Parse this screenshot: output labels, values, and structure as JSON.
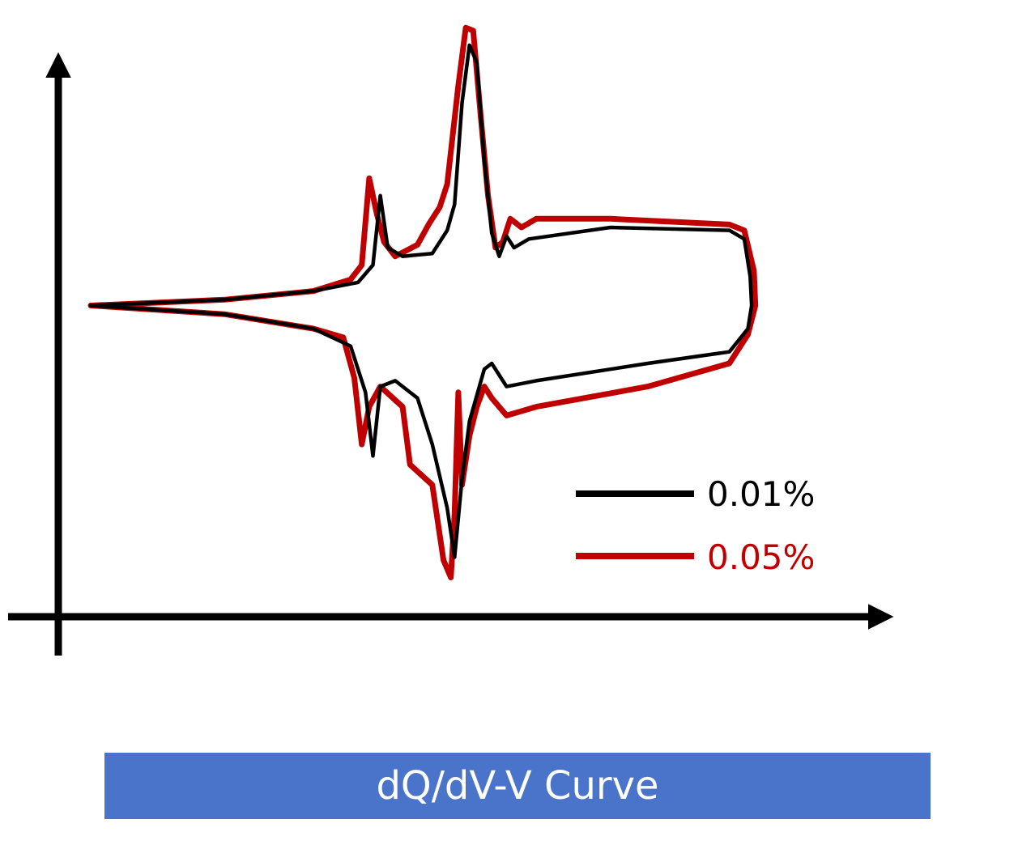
{
  "caption": "dQ/dV-V Curve",
  "chart_data": {
    "type": "line",
    "title": "",
    "xlabel": "",
    "ylabel": "",
    "axis_ticks": false,
    "grid": false,
    "legend_position": "bottom-right inside",
    "xlim": [
      0,
      100
    ],
    "ylim": [
      -100,
      100
    ],
    "series": [
      {
        "name": "0.01%",
        "color": "#000000",
        "charge_branch": [
          [
            0,
            0
          ],
          [
            18,
            2
          ],
          [
            30,
            5
          ],
          [
            36,
            8
          ],
          [
            38,
            14
          ],
          [
            39,
            38
          ],
          [
            40,
            20
          ],
          [
            42,
            17
          ],
          [
            46,
            18
          ],
          [
            48,
            26
          ],
          [
            49,
            35
          ],
          [
            50,
            70
          ],
          [
            51,
            90
          ],
          [
            52,
            84
          ],
          [
            53,
            50
          ],
          [
            54,
            25
          ],
          [
            55,
            17
          ],
          [
            56,
            24
          ],
          [
            57,
            20
          ],
          [
            59,
            23
          ],
          [
            70,
            27
          ],
          [
            86,
            26
          ],
          [
            88,
            23
          ],
          [
            88.8,
            10
          ],
          [
            89,
            0
          ]
        ],
        "discharge_branch": [
          [
            0,
            0
          ],
          [
            18,
            -3
          ],
          [
            30,
            -8
          ],
          [
            35,
            -14
          ],
          [
            37,
            -30
          ],
          [
            38,
            -52
          ],
          [
            39,
            -28
          ],
          [
            41,
            -26
          ],
          [
            44,
            -32
          ],
          [
            46,
            -48
          ],
          [
            48,
            -70
          ],
          [
            49,
            -87
          ],
          [
            50,
            -60
          ],
          [
            51,
            -40
          ],
          [
            53,
            -22
          ],
          [
            54,
            -20
          ],
          [
            56,
            -28
          ],
          [
            60,
            -26
          ],
          [
            75,
            -20
          ],
          [
            86,
            -16
          ],
          [
            88.5,
            -8
          ],
          [
            89,
            0
          ]
        ]
      },
      {
        "name": "0.05%",
        "color": "#c00000",
        "charge_branch": [
          [
            0,
            0
          ],
          [
            18,
            2
          ],
          [
            30,
            5
          ],
          [
            35,
            9
          ],
          [
            36.5,
            14
          ],
          [
            37.5,
            44
          ],
          [
            38.5,
            32
          ],
          [
            39.5,
            22
          ],
          [
            41,
            17
          ],
          [
            44,
            21
          ],
          [
            45.5,
            28
          ],
          [
            47,
            34
          ],
          [
            48,
            42
          ],
          [
            49.5,
            76
          ],
          [
            50.5,
            96
          ],
          [
            51.5,
            95
          ],
          [
            52.5,
            66
          ],
          [
            53.5,
            38
          ],
          [
            54.5,
            20
          ],
          [
            55.5,
            22
          ],
          [
            56.5,
            30
          ],
          [
            58,
            27
          ],
          [
            60,
            30
          ],
          [
            70,
            30
          ],
          [
            86,
            28
          ],
          [
            88,
            26
          ],
          [
            89.3,
            12
          ],
          [
            89.5,
            0
          ]
        ],
        "discharge_branch": [
          [
            0,
            0
          ],
          [
            18,
            -3
          ],
          [
            30,
            -8
          ],
          [
            34,
            -11
          ],
          [
            35.5,
            -25
          ],
          [
            36.5,
            -48
          ],
          [
            37.5,
            -35
          ],
          [
            39,
            -28
          ],
          [
            42,
            -35
          ],
          [
            43,
            -55
          ],
          [
            46,
            -62
          ],
          [
            47.5,
            -88
          ],
          [
            48.5,
            -94
          ],
          [
            49,
            -72
          ],
          [
            49.5,
            -30
          ],
          [
            50,
            -62
          ],
          [
            51,
            -45
          ],
          [
            52,
            -35
          ],
          [
            53,
            -28
          ],
          [
            54,
            -32
          ],
          [
            56,
            -38
          ],
          [
            60,
            -35
          ],
          [
            75,
            -28
          ],
          [
            86,
            -20
          ],
          [
            88.5,
            -10
          ],
          [
            89.5,
            0
          ]
        ]
      }
    ]
  }
}
